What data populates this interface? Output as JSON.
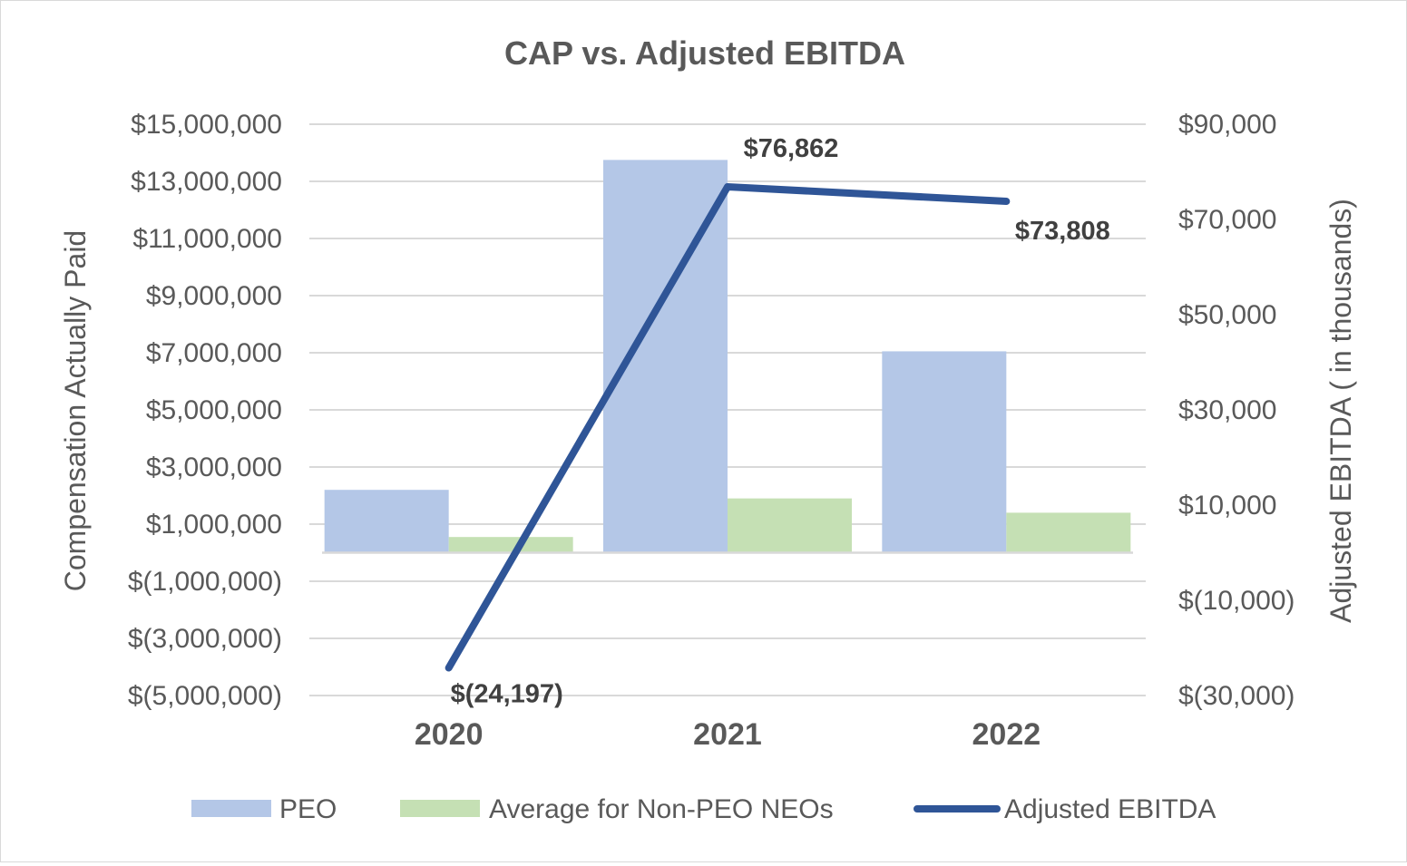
{
  "chart_data": {
    "type": "bar",
    "title": "CAP vs. Adjusted EBITDA",
    "categories": [
      "2020",
      "2021",
      "2022"
    ],
    "series": [
      {
        "name": "PEO",
        "type": "bar",
        "axis": "left",
        "color": "#b4c7e7",
        "values": [
          2200000,
          13750000,
          7050000
        ]
      },
      {
        "name": "Average for Non-PEO NEOs",
        "type": "bar",
        "axis": "left",
        "color": "#c5e0b4",
        "values": [
          550000,
          1900000,
          1400000
        ]
      },
      {
        "name": "Adjusted EBITDA",
        "type": "line",
        "axis": "right",
        "color": "#2f5597",
        "values": [
          -24197,
          76862,
          73808
        ],
        "labels": [
          "$(24,197)",
          "$76,862",
          "$73,808"
        ]
      }
    ],
    "ylabel": "Compensation Actually Paid",
    "y2label": "Adjusted EBITDA ( in thousands)",
    "ylim": [
      -5000000,
      15000000
    ],
    "y2lim": [
      -30000,
      90000
    ],
    "yticks": [
      15000000,
      13000000,
      11000000,
      9000000,
      7000000,
      5000000,
      3000000,
      1000000,
      -1000000,
      -3000000,
      -5000000
    ],
    "ytick_labels": [
      "$15,000,000",
      "$13,000,000",
      "$11,000,000",
      "$9,000,000",
      "$7,000,000",
      "$5,000,000",
      "$3,000,000",
      "$1,000,000",
      "$(1,000,000)",
      "$(3,000,000)",
      "$(5,000,000)"
    ],
    "y2ticks": [
      90000,
      70000,
      50000,
      30000,
      10000,
      -10000,
      -30000
    ],
    "y2tick_labels": [
      "$90,000",
      "$70,000",
      "$50,000",
      "$30,000",
      "$10,000",
      "$(10,000)",
      "$(30,000)"
    ],
    "grid": true,
    "legend": "bottom"
  }
}
